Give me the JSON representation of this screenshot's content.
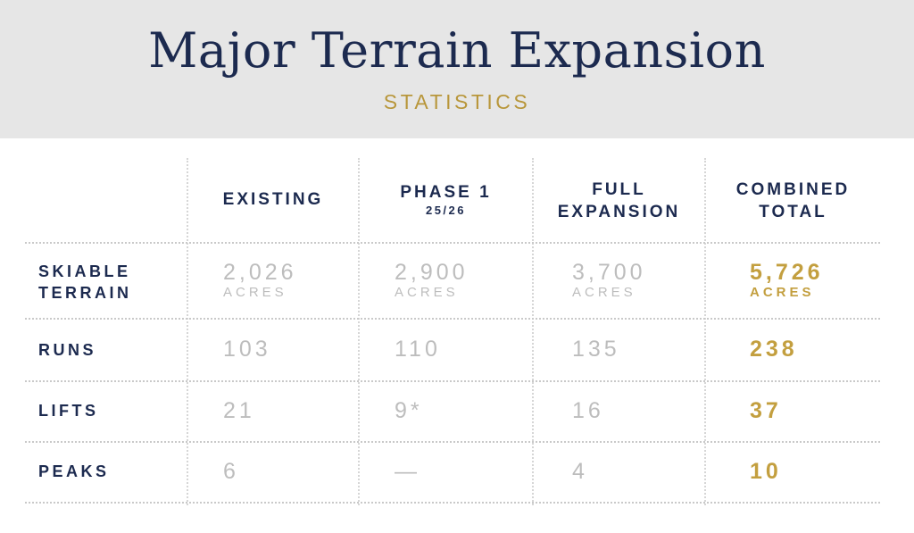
{
  "header": {
    "title": "Major Terrain Expansion",
    "subtitle": "STATISTICS"
  },
  "columns": {
    "existing": "EXISTING",
    "phase1": "PHASE 1",
    "phase1_sub": "25/26",
    "full_line1": "FULL",
    "full_line2": "EXPANSION",
    "combined_line1": "COMBINED",
    "combined_line2": "TOTAL"
  },
  "rows": {
    "skiable": {
      "label_line1": "SKIABLE",
      "label_line2": "TERRAIN",
      "existing": "2,026",
      "phase1": "2,900",
      "full": "3,700",
      "combined": "5,726",
      "unit": "ACRES"
    },
    "runs": {
      "label": "RUNS",
      "existing": "103",
      "phase1": "110",
      "full": "135",
      "combined": "238"
    },
    "lifts": {
      "label": "LIFTS",
      "existing": "21",
      "phase1": "9*",
      "full": "16",
      "combined": "37"
    },
    "peaks": {
      "label": "PEAKS",
      "existing": "6",
      "phase1": "—",
      "full": "4",
      "combined": "10"
    }
  },
  "colors": {
    "navy": "#1c2a4f",
    "gold": "#c39f3f",
    "muted": "#bdbdbd",
    "header_bg": "#e6e6e6"
  }
}
